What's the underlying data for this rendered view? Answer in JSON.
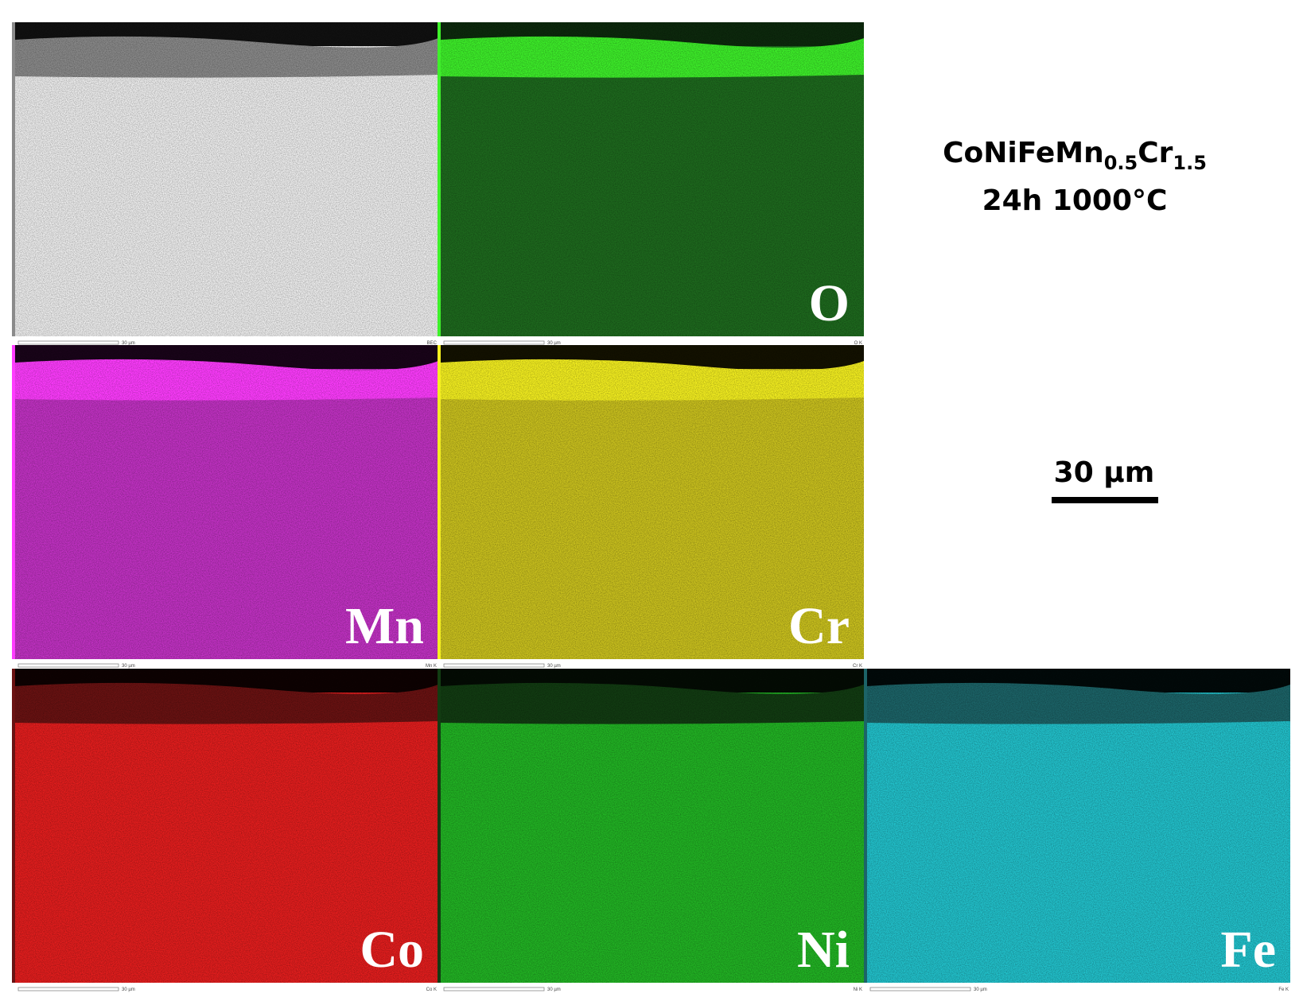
{
  "header": {
    "title": [
      "CoNiFeMn",
      "0.5",
      "Cr",
      "1.5"
    ],
    "subtitle": "24h 1000°C"
  },
  "scale_bar": "30 µm",
  "panels": [
    {
      "detector": "BEC",
      "bar_label": "30 µm"
    },
    {
      "label": "O",
      "detector": "O K",
      "bar_label": "30 µm"
    },
    {
      "label": "Mn",
      "detector": "Mn K",
      "bar_label": "30 µm"
    },
    {
      "label": "Cr",
      "detector": "Cr K",
      "bar_label": "30 µm"
    },
    {
      "label": "Co",
      "detector": "Co K",
      "bar_label": "30 µm"
    },
    {
      "label": "Ni",
      "detector": "Ni K",
      "bar_label": "30 µm"
    },
    {
      "label": "Fe",
      "detector": "Fe K",
      "bar_label": "30 µm"
    }
  ]
}
